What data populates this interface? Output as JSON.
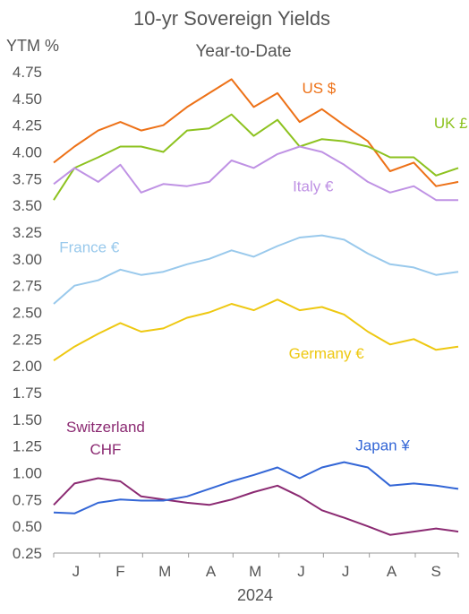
{
  "chart_data": {
    "type": "line",
    "title": "10-yr Sovereign Yields",
    "subtitle": "Year-to-Date",
    "ylabel": "YTM %",
    "xlabel": "2024",
    "ylim": [
      0.25,
      4.75
    ],
    "yticks": [
      "4.75",
      "4.50",
      "4.25",
      "4.00",
      "3.75",
      "3.50",
      "3.25",
      "3.00",
      "2.75",
      "2.50",
      "2.25",
      "2.00",
      "1.75",
      "1.50",
      "1.25",
      "1.00",
      "0.75",
      "0.50",
      "0.25"
    ],
    "month_labels": [
      "J",
      "F",
      "M",
      "A",
      "M",
      "J",
      "J",
      "A",
      "S"
    ],
    "grid": false,
    "legend": "inline labels",
    "x": [
      "2024-01-01",
      "2024-01-15",
      "2024-01-31",
      "2024-02-15",
      "2024-02-29",
      "2024-03-15",
      "2024-03-31",
      "2024-04-15",
      "2024-04-30",
      "2024-05-15",
      "2024-05-31",
      "2024-06-15",
      "2024-06-30",
      "2024-07-15",
      "2024-07-31",
      "2024-08-15",
      "2024-08-31",
      "2024-09-15",
      "2024-09-30"
    ],
    "series": [
      {
        "name": "US $",
        "color": "#ED7117",
        "label_x": "2024-06-28",
        "label_y": 4.55,
        "values": [
          3.9,
          4.05,
          4.2,
          4.28,
          4.2,
          4.25,
          4.42,
          4.55,
          4.68,
          4.42,
          4.55,
          4.28,
          4.4,
          4.25,
          4.1,
          3.82,
          3.9,
          3.68,
          3.72
        ]
      },
      {
        "name": "UK £",
        "color": "#8DC21F",
        "label_x": "2024-09-25",
        "label_y": 4.22,
        "values": [
          3.55,
          3.85,
          3.95,
          4.05,
          4.05,
          4.0,
          4.2,
          4.22,
          4.35,
          4.15,
          4.3,
          4.05,
          4.12,
          4.1,
          4.05,
          3.95,
          3.95,
          3.78,
          3.85
        ]
      },
      {
        "name": "Italy €",
        "color": "#BF92E4",
        "label_x": "2024-06-24",
        "label_y": 3.63,
        "values": [
          3.7,
          3.85,
          3.72,
          3.88,
          3.62,
          3.7,
          3.68,
          3.72,
          3.92,
          3.85,
          3.98,
          4.05,
          4.0,
          3.88,
          3.72,
          3.62,
          3.68,
          3.55,
          3.55
        ]
      },
      {
        "name": "France €",
        "color": "#99C9EC",
        "label_x": "2024-01-25",
        "label_y": 3.06,
        "values": [
          2.58,
          2.75,
          2.8,
          2.9,
          2.85,
          2.88,
          2.95,
          3.0,
          3.08,
          3.02,
          3.12,
          3.2,
          3.22,
          3.18,
          3.05,
          2.95,
          2.92,
          2.85,
          2.88
        ]
      },
      {
        "name": "Germany €",
        "color": "#EEC811",
        "label_x": "2024-07-03",
        "label_y": 2.07,
        "values": [
          2.05,
          2.18,
          2.3,
          2.4,
          2.32,
          2.35,
          2.45,
          2.5,
          2.58,
          2.52,
          2.62,
          2.52,
          2.55,
          2.48,
          2.32,
          2.2,
          2.25,
          2.15,
          2.18
        ]
      },
      {
        "name": "Switzerland",
        "name_line2": "CHF",
        "color": "#8B2A72",
        "label_x": "2024-02-05",
        "label_y": 1.38,
        "values": [
          0.7,
          0.9,
          0.95,
          0.92,
          0.78,
          0.75,
          0.72,
          0.7,
          0.75,
          0.82,
          0.88,
          0.78,
          0.65,
          0.58,
          0.5,
          0.42,
          0.45,
          0.48,
          0.45
        ]
      },
      {
        "name": "Japan ¥",
        "color": "#3366D6",
        "label_x": "2024-08-10",
        "label_y": 1.21,
        "values": [
          0.63,
          0.62,
          0.72,
          0.75,
          0.74,
          0.74,
          0.78,
          0.85,
          0.92,
          0.98,
          1.05,
          0.95,
          1.05,
          1.1,
          1.05,
          0.88,
          0.9,
          0.88,
          0.85
        ]
      }
    ]
  }
}
